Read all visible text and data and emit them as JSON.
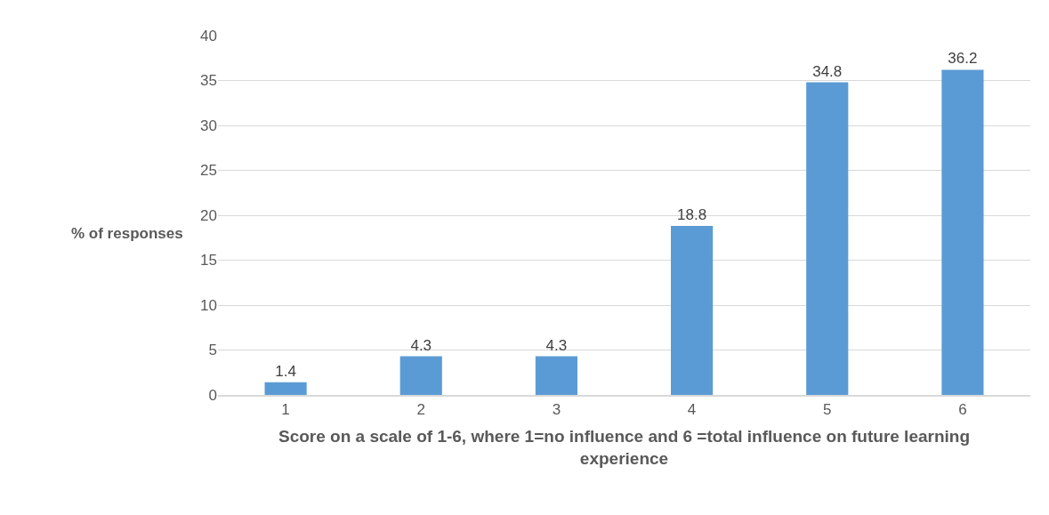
{
  "chart_data": {
    "type": "bar",
    "xlabel": "Score on a scale of 1-6, where 1=no influence and 6 =total influence on future learning experience",
    "ylabel": "% of responses",
    "categories": [
      "1",
      "2",
      "3",
      "4",
      "5",
      "6"
    ],
    "values": [
      1.4,
      4.3,
      4.3,
      18.8,
      34.8,
      36.2
    ],
    "color": "#5b9bd5",
    "ylim": [
      0,
      40
    ],
    "yticks": [
      0,
      5,
      10,
      15,
      20,
      25,
      30,
      35,
      40
    ],
    "grid": "y",
    "data_labels": true
  }
}
